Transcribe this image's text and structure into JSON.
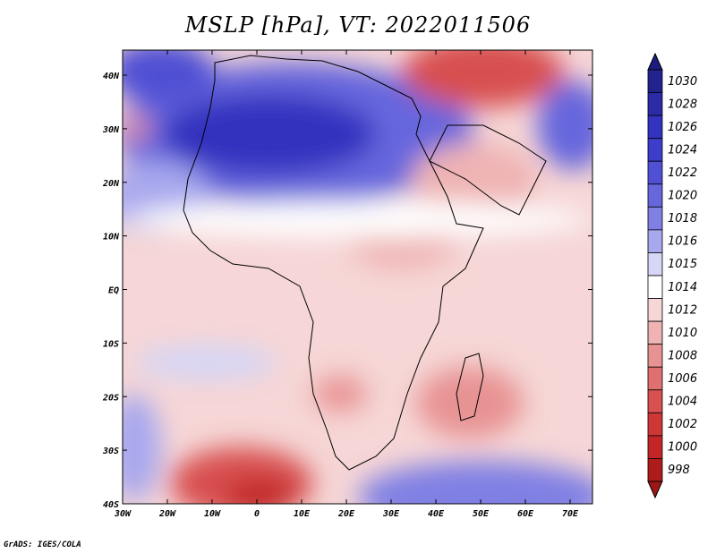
{
  "title": "MSLP [hPa], VT: 2022011506",
  "credit": "GrADS: IGES/COLA",
  "map": {
    "lon_labels": [
      "30W",
      "20W",
      "10W",
      "0",
      "10E",
      "20E",
      "30E",
      "40E",
      "50E",
      "60E",
      "70E"
    ],
    "lat_labels": [
      "40N",
      "30N",
      "20N",
      "10N",
      "EQ",
      "10S",
      "20S",
      "30S",
      "40S"
    ]
  },
  "colorbar": {
    "labels": [
      "1030",
      "1028",
      "1026",
      "1024",
      "1022",
      "1020",
      "1018",
      "1016",
      "1015",
      "1014",
      "1012",
      "1010",
      "1008",
      "1006",
      "1004",
      "1002",
      "1000",
      "998"
    ],
    "colors": [
      "#23238f",
      "#2b2ba8",
      "#3333bf",
      "#3d3dcc",
      "#5050d4",
      "#6666dd",
      "#8080e4",
      "#a8a8ee",
      "#d6d6f6",
      "#ffffff",
      "#f6d6d6",
      "#efb3b3",
      "#e89393",
      "#e07070",
      "#d85050",
      "#cf3737",
      "#c22626",
      "#ad1b1b"
    ],
    "top_arrow_color": "#1c1c7e",
    "bottom_arrow_color": "#9e1717"
  }
}
